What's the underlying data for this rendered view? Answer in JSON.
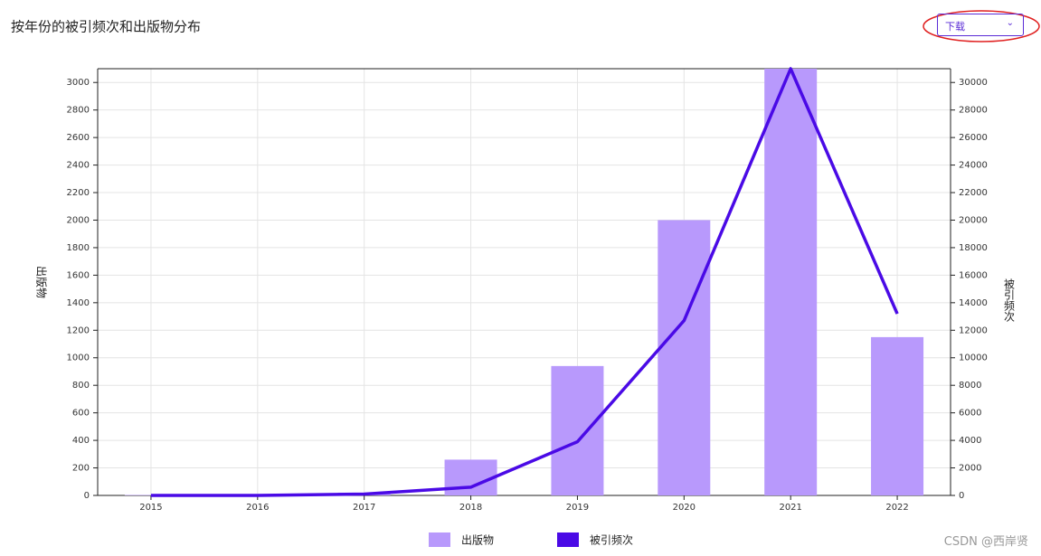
{
  "chart_data": {
    "type": "bar",
    "title": "按年份的被引频次和出版物分布",
    "categories": [
      "2015",
      "2016",
      "2017",
      "2018",
      "2019",
      "2020",
      "2021",
      "2022"
    ],
    "series": [
      {
        "name": "出版物",
        "type": "bar",
        "color": "#b899fc",
        "values": [
          3,
          0,
          20,
          260,
          940,
          2000,
          3100,
          1150
        ]
      },
      {
        "name": "被引频次",
        "type": "line",
        "axis": "y2",
        "color": "#4a0ae6",
        "values": [
          0,
          0,
          100,
          600,
          3900,
          12700,
          31000,
          13200
        ]
      }
    ],
    "ylabel": "出版物",
    "y2label": "被引频次",
    "ylim": [
      0,
      3100
    ],
    "yticks": [
      0,
      200,
      400,
      600,
      800,
      1000,
      1200,
      1400,
      1600,
      1800,
      2000,
      2200,
      2400,
      2600,
      2800,
      3000
    ],
    "y2lim": [
      0,
      31000
    ],
    "y2ticks": [
      0,
      2000,
      4000,
      6000,
      8000,
      10000,
      12000,
      14000,
      16000,
      18000,
      20000,
      22000,
      24000,
      26000,
      28000,
      30000
    ],
    "grid": true,
    "legend": "bottom"
  },
  "toolbar": {
    "download": "下载"
  },
  "watermark": "CSDN @西岸贤"
}
